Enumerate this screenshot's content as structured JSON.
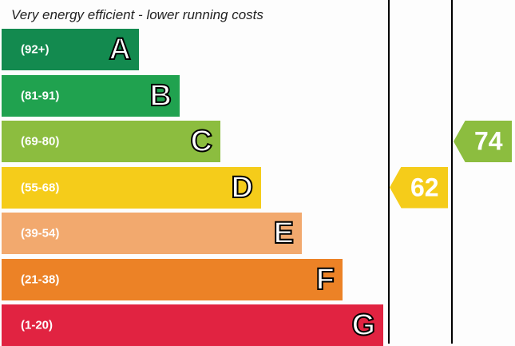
{
  "chart_data": {
    "type": "bar",
    "title": "Very energy efficient - lower running costs",
    "bands": [
      {
        "letter": "A",
        "range": "(92+)",
        "color": "#138a4f"
      },
      {
        "letter": "B",
        "range": "(81-91)",
        "color": "#20a24f"
      },
      {
        "letter": "C",
        "range": "(69-80)",
        "color": "#8cbd3f"
      },
      {
        "letter": "D",
        "range": "(55-68)",
        "color": "#f5cc1a"
      },
      {
        "letter": "E",
        "range": "(39-54)",
        "color": "#f2a96e"
      },
      {
        "letter": "F",
        "range": "(21-38)",
        "color": "#ec8226"
      },
      {
        "letter": "G",
        "range": "(1-20)",
        "color": "#e12341"
      }
    ],
    "ratings": [
      {
        "column": "current",
        "value": 62,
        "band": "D",
        "color": "#f5cc1a"
      },
      {
        "column": "potential",
        "value": 74,
        "band": "C",
        "color": "#8cbd3f"
      }
    ]
  }
}
